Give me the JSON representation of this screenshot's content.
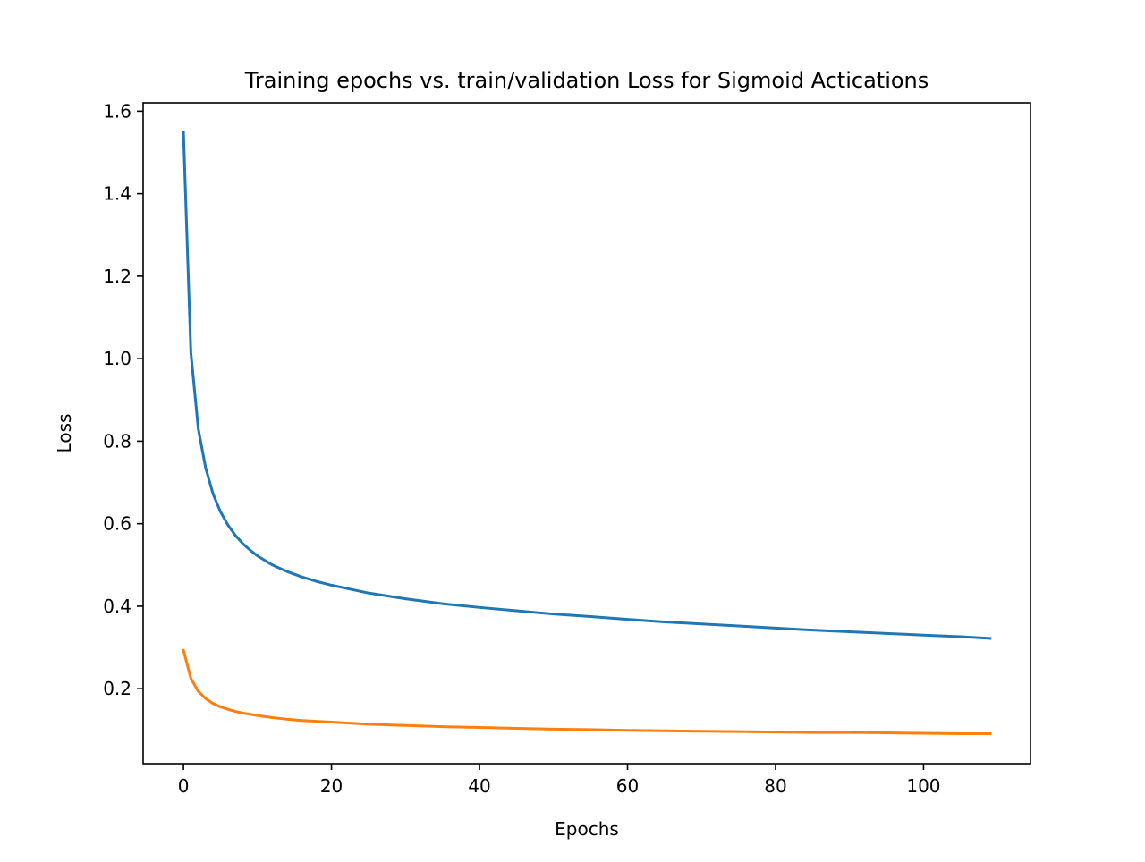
{
  "chart_data": {
    "type": "line",
    "title": "Training epochs vs. train/validation Loss for Sigmoid Actications",
    "xlabel": "Epochs",
    "ylabel": "Loss",
    "xlim": [
      -5.45,
      114.45
    ],
    "ylim": [
      0.0183,
      1.6203
    ],
    "grid": false,
    "legend": "none",
    "xticks": [
      0,
      20,
      40,
      60,
      80,
      100
    ],
    "xtick_labels": [
      "0",
      "20",
      "40",
      "60",
      "80",
      "100"
    ],
    "yticks": [
      0.2,
      0.4,
      0.6,
      0.8,
      1.0,
      1.2,
      1.4,
      1.6
    ],
    "ytick_labels": [
      "0.2",
      "0.4",
      "0.6",
      "0.8",
      "1.0",
      "1.2",
      "1.4",
      "1.6"
    ],
    "series": [
      {
        "color": "#1f77b4",
        "x": [
          0,
          1,
          2,
          3,
          4,
          5,
          6,
          7,
          8,
          9,
          10,
          12,
          14,
          16,
          18,
          20,
          25,
          30,
          35,
          40,
          45,
          50,
          55,
          60,
          65,
          70,
          75,
          80,
          85,
          90,
          95,
          100,
          105,
          109
        ],
        "y": [
          1.548,
          1.015,
          0.83,
          0.735,
          0.672,
          0.629,
          0.597,
          0.572,
          0.552,
          0.536,
          0.522,
          0.5,
          0.484,
          0.471,
          0.46,
          0.451,
          0.432,
          0.418,
          0.406,
          0.397,
          0.389,
          0.381,
          0.375,
          0.368,
          0.362,
          0.357,
          0.352,
          0.347,
          0.342,
          0.338,
          0.334,
          0.33,
          0.326,
          0.322
        ]
      },
      {
        "color": "#ff7f0e",
        "x": [
          0,
          1,
          2,
          3,
          4,
          5,
          6,
          7,
          8,
          9,
          10,
          12,
          14,
          16,
          18,
          20,
          25,
          30,
          35,
          40,
          45,
          50,
          55,
          60,
          65,
          70,
          75,
          80,
          85,
          90,
          95,
          100,
          105,
          109
        ],
        "y": [
          0.293,
          0.225,
          0.194,
          0.176,
          0.164,
          0.156,
          0.15,
          0.145,
          0.141,
          0.138,
          0.135,
          0.13,
          0.126,
          0.123,
          0.121,
          0.119,
          0.114,
          0.111,
          0.108,
          0.106,
          0.104,
          0.102,
          0.101,
          0.099,
          0.098,
          0.097,
          0.096,
          0.095,
          0.094,
          0.094,
          0.093,
          0.092,
          0.091,
          0.091
        ]
      }
    ]
  }
}
